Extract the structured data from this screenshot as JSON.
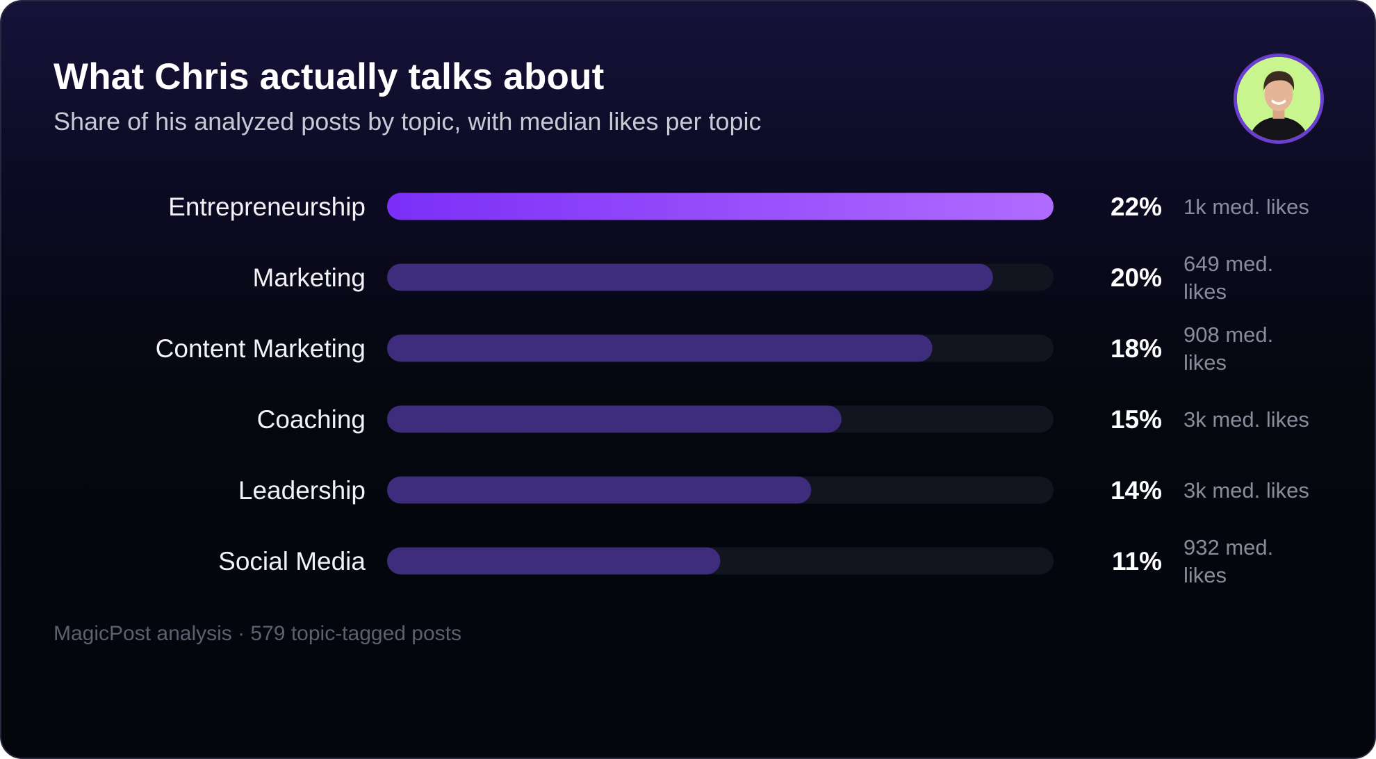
{
  "header": {
    "title": "What Chris actually talks about",
    "subtitle": "Share of his analyzed posts by topic, with median likes per topic"
  },
  "footer": {
    "text": "MagicPost analysis · 579 topic-tagged posts"
  },
  "colors": {
    "highlight_bar_start": "#7b2ff7",
    "highlight_bar_end": "#b06cff",
    "bar": "#3d2d7c",
    "track": "#121520",
    "avatar_ring": "#6a3fd0",
    "avatar_bg": "#c9f58e"
  },
  "chart_data": {
    "type": "bar",
    "orientation": "horizontal",
    "title": "What Chris actually talks about",
    "subtitle": "Share of his analyzed posts by topic, with median likes per topic",
    "unit": "%",
    "xlim": [
      0,
      22
    ],
    "categories": [
      "Entrepreneurship",
      "Marketing",
      "Content Marketing",
      "Coaching",
      "Leadership",
      "Social Media"
    ],
    "values": [
      22,
      20,
      18,
      15,
      14,
      11
    ],
    "value_labels": [
      "22%",
      "20%",
      "18%",
      "15%",
      "14%",
      "11%"
    ],
    "median_likes_labels": [
      [
        "1k med. likes"
      ],
      [
        "649 med.",
        "likes"
      ],
      [
        "908 med.",
        "likes"
      ],
      [
        "3k med. likes"
      ],
      [
        "3k med. likes"
      ],
      [
        "932 med.",
        "likes"
      ]
    ],
    "highlighted_index": 0,
    "grid": false,
    "legend": "none"
  }
}
